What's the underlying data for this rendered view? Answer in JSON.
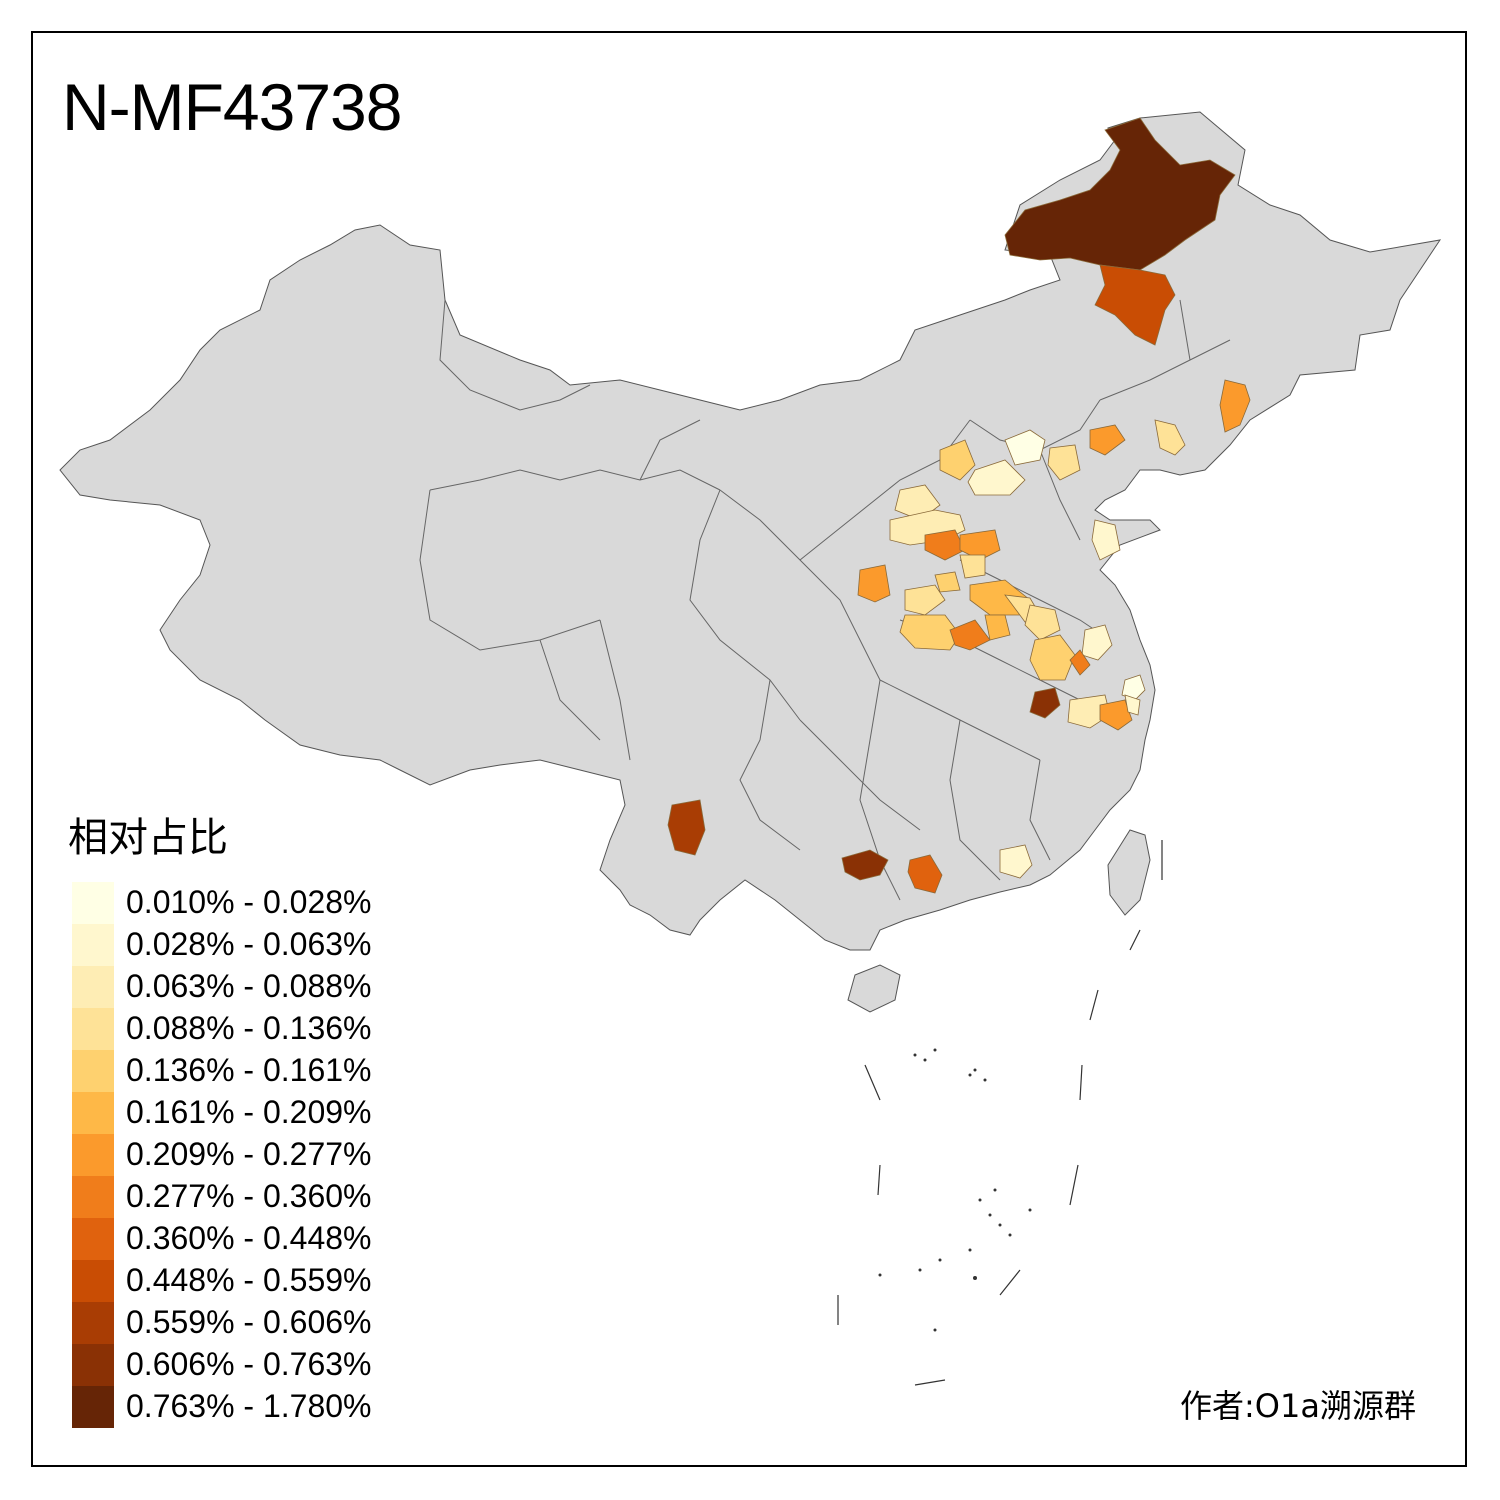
{
  "title": "N-MF43738",
  "legend": {
    "title": "相对占比",
    "items": [
      {
        "label": "0.010% - 0.028%",
        "color": "#FFFFE5"
      },
      {
        "label": "0.028% - 0.063%",
        "color": "#FFF7CE"
      },
      {
        "label": "0.063% - 0.088%",
        "color": "#FEEDB4"
      },
      {
        "label": "0.088% - 0.136%",
        "color": "#FEE297"
      },
      {
        "label": "0.136% - 0.161%",
        "color": "#FED16F"
      },
      {
        "label": "0.161% - 0.209%",
        "color": "#FEB847"
      },
      {
        "label": "0.209% - 0.277%",
        "color": "#FB9A2C"
      },
      {
        "label": "0.277% - 0.360%",
        "color": "#F07D1B"
      },
      {
        "label": "0.360% - 0.448%",
        "color": "#E0620E"
      },
      {
        "label": "0.448% - 0.559%",
        "color": "#C94D04"
      },
      {
        "label": "0.559% - 0.606%",
        "color": "#A93D04"
      },
      {
        "label": "0.606% - 0.763%",
        "color": "#8A3105"
      },
      {
        "label": "0.763% - 1.780%",
        "color": "#662506"
      }
    ]
  },
  "credit": "作者:O1a溯源群",
  "map": {
    "base_color": "#D9D9D9",
    "border_color": "#555555",
    "frame_color": "#000000"
  }
}
